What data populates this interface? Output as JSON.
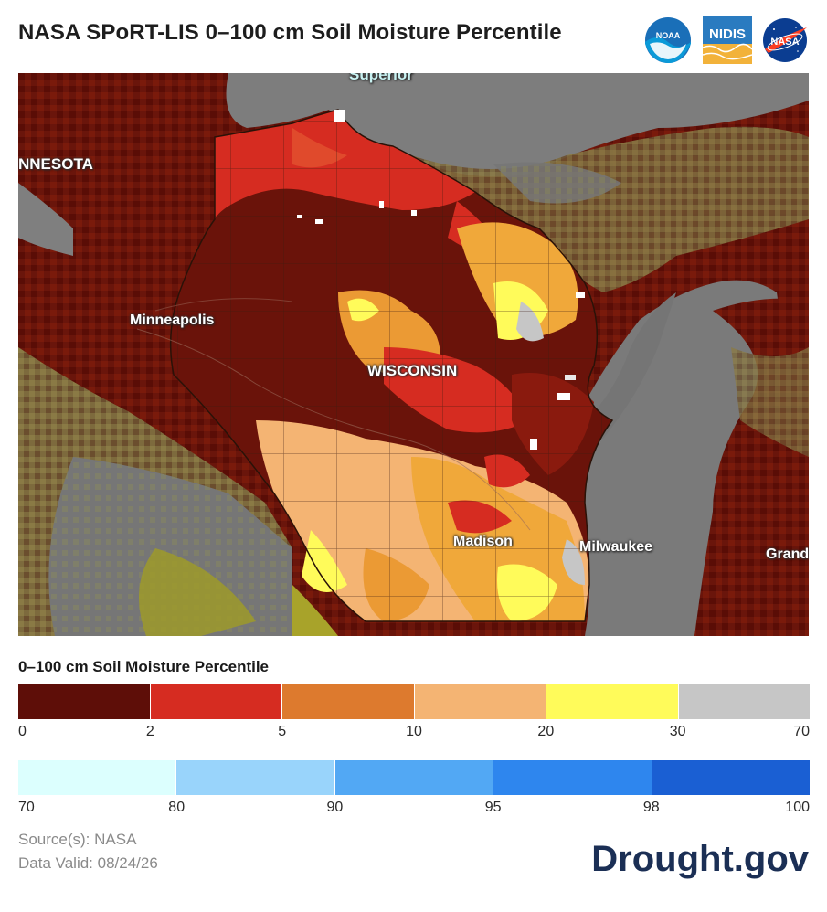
{
  "title": "NASA SPoRT-LIS 0–100 cm Soil Moisture Percentile",
  "logos": {
    "noaa_text": "NOAA",
    "nidis_text": "NIDIS",
    "nasa_text": "NASA"
  },
  "map": {
    "labels": {
      "superior": "Superior",
      "minnesota": "NNESOTA",
      "minneapolis": "Minneapolis",
      "wisconsin": "WISCONSIN",
      "madison": "Madison",
      "milwaukee": "Milwaukee",
      "grand": "Grand"
    }
  },
  "legend": {
    "title": "0–100 cm Soil Moisture Percentile",
    "dry": {
      "colors": [
        "#5e0e08",
        "#d62c21",
        "#dd7a2e",
        "#f4b473",
        "#fffb5a",
        "#c6c6c6"
      ],
      "ticks": [
        "0",
        "2",
        "5",
        "10",
        "20",
        "30",
        "70"
      ]
    },
    "wet": {
      "colors": [
        "#dcfffe",
        "#99d4fb",
        "#52a8f4",
        "#2e86ee",
        "#1a5fd3"
      ],
      "ticks": [
        "70",
        "80",
        "90",
        "95",
        "98",
        "100"
      ]
    }
  },
  "source": "Source(s): NASA",
  "valid": "Data Valid: 08/24/26",
  "brand": "Drought.gov"
}
